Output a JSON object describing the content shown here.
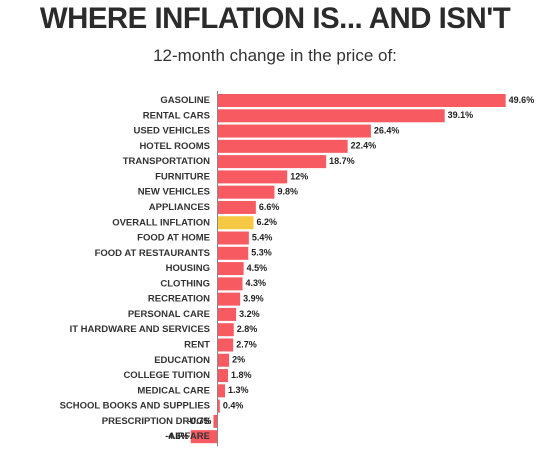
{
  "chart_data": {
    "type": "bar",
    "orientation": "horizontal",
    "title": "WHERE INFLATION IS... AND ISN'T",
    "subtitle": "12-month change in the price of:",
    "categories": [
      "GASOLINE",
      "RENTAL CARS",
      "USED VEHICLES",
      "HOTEL ROOMS",
      "TRANSPORTATION",
      "FURNITURE",
      "NEW VEHICLES",
      "APPLIANCES",
      "OVERALL INFLATION",
      "FOOD AT HOME",
      "FOOD AT RESTAURANTS",
      "HOUSING",
      "CLOTHING",
      "RECREATION",
      "PERSONAL CARE",
      "IT HARDWARE AND SERVICES",
      "RENT",
      "EDUCATION",
      "COLLEGE TUITION",
      "MEDICAL CARE",
      "SCHOOL BOOKS AND SUPPLIES",
      "PRESCRIPTION DRUGS",
      "AIRFARE"
    ],
    "values": [
      49.6,
      39.1,
      26.4,
      22.4,
      18.7,
      12,
      9.8,
      6.6,
      6.2,
      5.4,
      5.3,
      4.5,
      4.3,
      3.9,
      3.2,
      2.8,
      2.7,
      2,
      1.8,
      1.3,
      0.4,
      -0.7,
      -4.6
    ],
    "value_labels": [
      "49.6%",
      "39.1%",
      "26.4%",
      "22.4%",
      "18.7%",
      "12%",
      "9.8%",
      "6.6%",
      "6.2%",
      "5.4%",
      "5.3%",
      "4.5%",
      "4.3%",
      "3.9%",
      "3.2%",
      "2.8%",
      "2.7%",
      "2%",
      "1.8%",
      "1.3%",
      "0.4%",
      "-0.7%",
      "-4.6%"
    ],
    "highlight_category": "OVERALL INFLATION",
    "xlim": [
      -4.6,
      49.6
    ],
    "grid": false,
    "legend": "none",
    "colors": {
      "bar": "#f75a61",
      "highlight": "#f7c844",
      "axis": "#888888"
    }
  }
}
